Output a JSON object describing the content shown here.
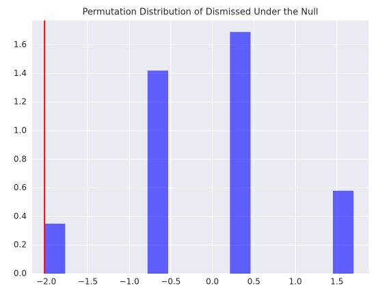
{
  "chart_data": {
    "type": "histogram",
    "title": "Permutation Distribution of Dismissed Under the Null",
    "bins": [
      -2.02,
      -1.772,
      -1.524,
      -1.276,
      -1.028,
      -0.78,
      -0.532,
      -0.284,
      -0.036,
      0.212,
      0.46,
      0.708,
      0.956,
      1.204,
      1.452,
      1.7
    ],
    "values": [
      0.35,
      0,
      0,
      0,
      0,
      1.42,
      0,
      0,
      0,
      1.69,
      0,
      0,
      0,
      0,
      0.58
    ],
    "color": "#0000ff",
    "alpha": 0.6,
    "vline": {
      "x": -2.02,
      "color": "#ff0000"
    },
    "xlim": [
      -2.17,
      1.88
    ],
    "xticks": [
      {
        "value": -2.0,
        "label": "−2.0"
      },
      {
        "value": -1.5,
        "label": "−1.5"
      },
      {
        "value": -1.0,
        "label": "−1.0"
      },
      {
        "value": -0.5,
        "label": "−0.5"
      },
      {
        "value": 0,
        "label": "0.0"
      },
      0.5,
      {
        "value": 1,
        "label": "1.0"
      },
      1.5
    ],
    "ylim": [
      0,
      1.77
    ],
    "yticks": [
      {
        "value": 0,
        "label": "0.0"
      },
      0.2,
      0.4,
      0.6,
      0.8,
      {
        "value": 1,
        "label": "1.0"
      },
      1.2,
      1.4,
      1.6
    ],
    "grid": true
  }
}
